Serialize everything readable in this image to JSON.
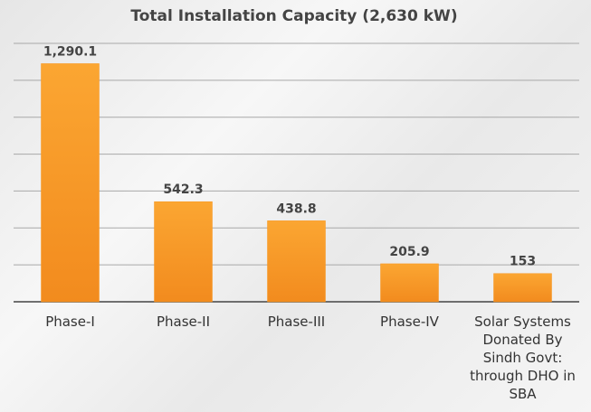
{
  "chart_data": {
    "type": "bar",
    "title": "Total Installation Capacity (2,630 kW)",
    "categories": [
      "Phase-I",
      "Phase-II",
      "Phase-III",
      "Phase-IV",
      "Solar Systems Donated By Sindh Govt: through DHO in SBA"
    ],
    "values": [
      1290.1,
      542.3,
      438.8,
      205.9,
      153
    ],
    "value_labels": [
      "1,290.1",
      "542.3",
      "438.8",
      "205.9",
      "153"
    ],
    "color": "#f7951f",
    "ylim": [
      0,
      1400
    ],
    "yticks": [
      0,
      200,
      400,
      600,
      800,
      1000,
      1200,
      1400
    ],
    "grid": true
  }
}
